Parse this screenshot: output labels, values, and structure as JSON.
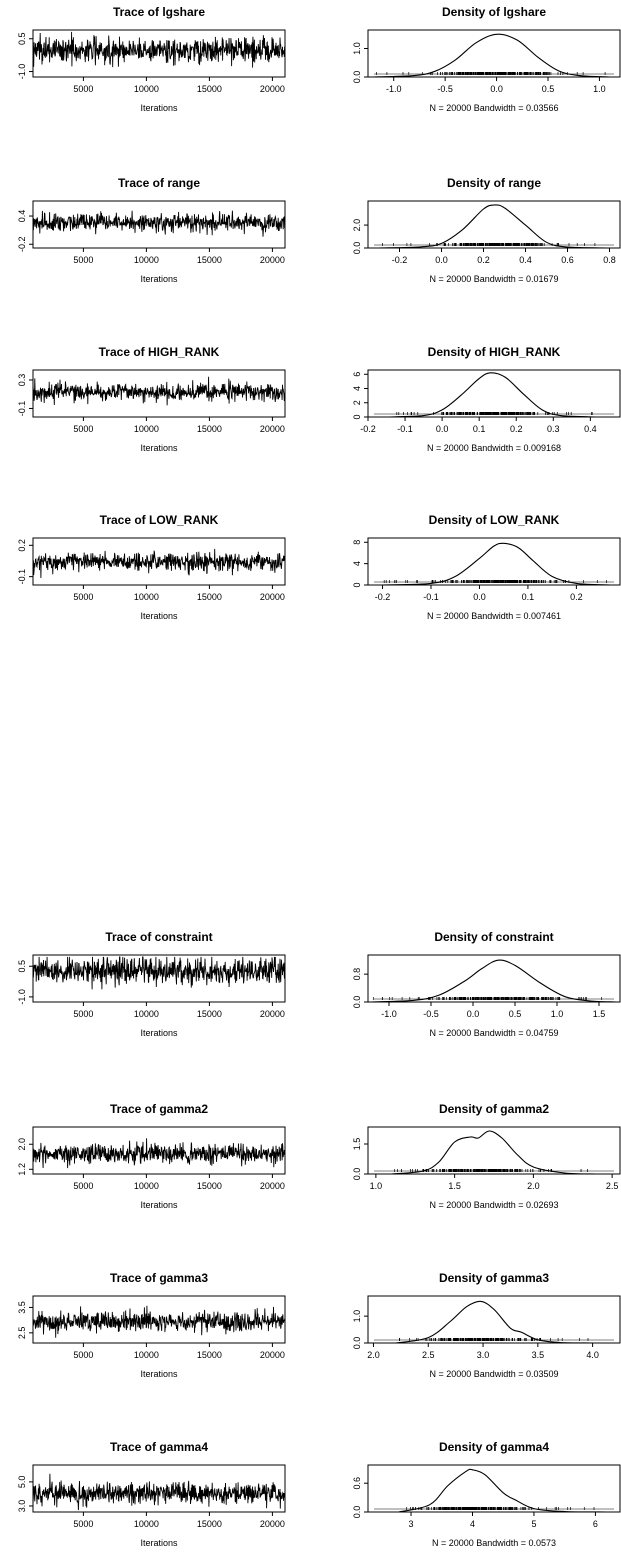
{
  "figure": {
    "background": "#ffffff",
    "line_color": "#000000",
    "rug_color": "#000000"
  },
  "chart_data": [
    {
      "type": "line",
      "title": "Trace of lgshare",
      "xlabel": "Iterations",
      "xlim": [
        1000,
        21000
      ],
      "ylim": [
        -1.25,
        0.9
      ],
      "xticks": [
        5000,
        10000,
        15000,
        20000
      ],
      "xtick_labels": [
        "5000",
        "10000",
        "15000",
        "20000"
      ],
      "yticks": [
        -1.0,
        0.5
      ],
      "ytick_labels": [
        "-1.0",
        "0.5"
      ],
      "trace": {
        "center": -0.02,
        "sd": 0.3,
        "n": 20000
      }
    },
    {
      "type": "line",
      "title": "Density of lgshare",
      "xlabel": "N = 20000   Bandwidth = 0.03566",
      "xlim": [
        -1.25,
        1.2
      ],
      "ylim": [
        0,
        1.65
      ],
      "xticks": [
        -1.0,
        -0.5,
        0.0,
        0.5,
        1.0
      ],
      "xtick_labels": [
        "-1.0",
        "-0.5",
        "0.0",
        "0.5",
        "1.0"
      ],
      "yticks": [
        0.0,
        1.0
      ],
      "ytick_labels": [
        "0.0",
        "1.0"
      ],
      "density": {
        "x": [
          -1.2,
          -0.8,
          -0.6,
          -0.4,
          -0.2,
          0.0,
          0.2,
          0.4,
          0.6,
          0.8,
          1.1
        ],
        "y": [
          0.0,
          0.05,
          0.2,
          0.6,
          1.2,
          1.5,
          1.3,
          0.7,
          0.22,
          0.05,
          0.0
        ]
      }
    },
    {
      "type": "line",
      "title": "Trace of range",
      "xlabel": "Iterations",
      "xlim": [
        1000,
        21000
      ],
      "ylim": [
        -0.28,
        0.72
      ],
      "xticks": [
        5000,
        10000,
        15000,
        20000
      ],
      "xtick_labels": [
        "5000",
        "10000",
        "15000",
        "20000"
      ],
      "yticks": [
        -0.2,
        0.4
      ],
      "ytick_labels": [
        "-0.2",
        "0.4"
      ],
      "trace": {
        "center": 0.26,
        "sd": 0.1,
        "n": 20000
      }
    },
    {
      "type": "line",
      "title": "Density of range",
      "xlabel": "N = 20000   Bandwidth = 0.01679",
      "xlim": [
        -0.35,
        0.85
      ],
      "ylim": [
        0,
        4.1
      ],
      "xticks": [
        -0.2,
        0.0,
        0.2,
        0.4,
        0.6,
        0.8
      ],
      "xtick_labels": [
        "-0.2",
        "0.0",
        "0.2",
        "0.4",
        "0.6",
        "0.8"
      ],
      "yticks": [
        0.0,
        2.0
      ],
      "ytick_labels": [
        "0.0",
        "2.0"
      ],
      "density": {
        "x": [
          -0.3,
          -0.1,
          0.0,
          0.1,
          0.2,
          0.25,
          0.3,
          0.4,
          0.5,
          0.6,
          0.8
        ],
        "y": [
          0.0,
          0.1,
          0.4,
          1.6,
          3.4,
          3.75,
          3.5,
          2.0,
          0.5,
          0.08,
          0.0
        ]
      }
    },
    {
      "type": "line",
      "title": "Trace of HIGH_RANK",
      "xlabel": "Iterations",
      "xlim": [
        1000,
        21000
      ],
      "ylim": [
        -0.22,
        0.44
      ],
      "xticks": [
        5000,
        10000,
        15000,
        20000
      ],
      "xtick_labels": [
        "5000",
        "10000",
        "15000",
        "20000"
      ],
      "yticks": [
        -0.1,
        0.3
      ],
      "ytick_labels": [
        "-0.1",
        "0.3"
      ],
      "trace": {
        "center": 0.13,
        "sd": 0.063,
        "n": 20000
      }
    },
    {
      "type": "line",
      "title": "Density of HIGH_RANK",
      "xlabel": "N = 20000   Bandwidth = 0.009168",
      "xlim": [
        -0.2,
        0.48
      ],
      "ylim": [
        0,
        6.6
      ],
      "xticks": [
        -0.2,
        -0.1,
        0.0,
        0.1,
        0.2,
        0.3,
        0.4
      ],
      "xtick_labels": [
        "-0.2",
        "-0.1",
        "0.0",
        "0.1",
        "0.2",
        "0.3",
        "0.4"
      ],
      "yticks": [
        0,
        2,
        4,
        6
      ],
      "ytick_labels": [
        "0",
        "2",
        "4",
        "6"
      ],
      "density": {
        "x": [
          -0.15,
          -0.05,
          0.0,
          0.05,
          0.1,
          0.13,
          0.17,
          0.22,
          0.27,
          0.32,
          0.42
        ],
        "y": [
          0.0,
          0.2,
          1.0,
          3.0,
          5.4,
          6.2,
          5.6,
          3.2,
          1.0,
          0.2,
          0.0
        ]
      }
    },
    {
      "type": "line",
      "title": "Trace of LOW_RANK",
      "xlabel": "Iterations",
      "xlim": [
        1000,
        21000
      ],
      "ylim": [
        -0.18,
        0.27
      ],
      "xticks": [
        5000,
        10000,
        15000,
        20000
      ],
      "xtick_labels": [
        "5000",
        "10000",
        "15000",
        "20000"
      ],
      "yticks": [
        -0.1,
        0.2
      ],
      "ytick_labels": [
        "-0.1",
        "0.2"
      ],
      "trace": {
        "center": 0.04,
        "sd": 0.045,
        "n": 20000
      }
    },
    {
      "type": "line",
      "title": "Density of LOW_RANK",
      "xlabel": "N = 20000   Bandwidth = 0.007461",
      "xlim": [
        -0.23,
        0.29
      ],
      "ylim": [
        0,
        8.8
      ],
      "xticks": [
        -0.2,
        -0.1,
        0.0,
        0.1,
        0.2
      ],
      "xtick_labels": [
        "-0.2",
        "-0.1",
        "0.0",
        "0.1",
        "0.2"
      ],
      "yticks": [
        0,
        4,
        8
      ],
      "ytick_labels": [
        "0",
        "4",
        "8"
      ],
      "density": {
        "x": [
          -0.2,
          -0.1,
          -0.05,
          0.0,
          0.03,
          0.05,
          0.08,
          0.11,
          0.15,
          0.2,
          0.27
        ],
        "y": [
          0.0,
          0.3,
          1.6,
          5.0,
          7.3,
          7.8,
          7.0,
          4.6,
          1.6,
          0.3,
          0.0
        ]
      }
    },
    {
      "type": "line",
      "title": "Trace of constraint",
      "xlabel": "Iterations",
      "xlim": [
        1000,
        21000
      ],
      "ylim": [
        -1.25,
        1.05
      ],
      "xticks": [
        5000,
        10000,
        15000,
        20000
      ],
      "xtick_labels": [
        "5000",
        "10000",
        "15000",
        "20000"
      ],
      "yticks": [
        -1.0,
        0.5
      ],
      "ytick_labels": [
        "-1.0",
        "0.5"
      ],
      "trace": {
        "center": 0.28,
        "sd": 0.33,
        "n": 20000
      }
    },
    {
      "type": "line",
      "title": "Density of constraint",
      "xlabel": "N = 20000   Bandwidth = 0.04759",
      "xlim": [
        -1.25,
        1.75
      ],
      "ylim": [
        0,
        1.35
      ],
      "xticks": [
        -1.0,
        -0.5,
        0.0,
        0.5,
        1.0,
        1.5
      ],
      "xtick_labels": [
        "-1.0",
        "-0.5",
        "0.0",
        "0.5",
        "1.0",
        "1.5"
      ],
      "yticks": [
        0.0,
        0.8
      ],
      "ytick_labels": [
        "0.0",
        "0.8"
      ],
      "density": {
        "x": [
          -1.2,
          -0.7,
          -0.4,
          -0.1,
          0.1,
          0.3,
          0.5,
          0.8,
          1.1,
          1.4,
          1.7
        ],
        "y": [
          0.0,
          0.05,
          0.2,
          0.6,
          0.95,
          1.2,
          1.05,
          0.55,
          0.15,
          0.03,
          0.0
        ]
      }
    },
    {
      "type": "line",
      "title": "Trace of gamma2",
      "xlabel": "Iterations",
      "xlim": [
        1000,
        21000
      ],
      "ylim": [
        1.05,
        2.55
      ],
      "xticks": [
        5000,
        10000,
        15000,
        20000
      ],
      "xtick_labels": [
        "5000",
        "10000",
        "15000",
        "20000"
      ],
      "yticks": [
        1.2,
        2.0
      ],
      "ytick_labels": [
        "1.2",
        "2.0"
      ],
      "trace": {
        "center": 1.7,
        "sd": 0.15,
        "n": 20000
      }
    },
    {
      "type": "line",
      "title": "Density of gamma2",
      "xlabel": "N = 20000   Bandwidth = 0.02693",
      "xlim": [
        0.95,
        2.55
      ],
      "ylim": [
        0,
        2.35
      ],
      "xticks": [
        1.0,
        1.5,
        2.0,
        2.5
      ],
      "xtick_labels": [
        "1.0",
        "1.5",
        "2.0",
        "2.5"
      ],
      "yticks": [
        0.0,
        1.5
      ],
      "ytick_labels": [
        "0.0",
        "1.5"
      ],
      "density": {
        "x": [
          1.1,
          1.3,
          1.4,
          1.5,
          1.6,
          1.65,
          1.72,
          1.8,
          1.9,
          2.0,
          2.2,
          2.4
        ],
        "y": [
          0.0,
          0.15,
          0.6,
          1.6,
          1.85,
          1.8,
          2.15,
          1.8,
          0.95,
          0.35,
          0.05,
          0.0
        ]
      }
    },
    {
      "type": "line",
      "title": "Trace of gamma3",
      "xlabel": "Iterations",
      "xlim": [
        1000,
        21000
      ],
      "ylim": [
        2.1,
        3.95
      ],
      "xticks": [
        5000,
        10000,
        15000,
        20000
      ],
      "xtick_labels": [
        "5000",
        "10000",
        "15000",
        "20000"
      ],
      "yticks": [
        2.5,
        3.5
      ],
      "ytick_labels": [
        "2.5",
        "3.5"
      ],
      "trace": {
        "center": 2.95,
        "sd": 0.2,
        "n": 20000
      }
    },
    {
      "type": "line",
      "title": "Density of gamma3",
      "xlabel": "N = 20000   Bandwidth = 0.03509",
      "xlim": [
        1.95,
        4.25
      ],
      "ylim": [
        0,
        1.75
      ],
      "xticks": [
        2.0,
        2.5,
        3.0,
        3.5,
        4.0
      ],
      "xtick_labels": [
        "2.0",
        "2.5",
        "3.0",
        "3.5",
        "4.0"
      ],
      "yticks": [
        0.0,
        1.0
      ],
      "ytick_labels": [
        "0.0",
        "1.0"
      ],
      "density": {
        "x": [
          2.2,
          2.5,
          2.7,
          2.85,
          2.98,
          3.1,
          3.25,
          3.35,
          3.5,
          3.7,
          4.0
        ],
        "y": [
          0.0,
          0.2,
          0.8,
          1.35,
          1.55,
          1.25,
          0.55,
          0.4,
          0.12,
          0.02,
          0.0
        ]
      }
    },
    {
      "type": "line",
      "title": "Trace of gamma4",
      "xlabel": "Iterations",
      "xlim": [
        1000,
        21000
      ],
      "ylim": [
        2.5,
        6.4
      ],
      "xticks": [
        5000,
        10000,
        15000,
        20000
      ],
      "xtick_labels": [
        "5000",
        "10000",
        "15000",
        "20000"
      ],
      "yticks": [
        3.0,
        5.0
      ],
      "ytick_labels": [
        "3.0",
        "5.0"
      ],
      "trace": {
        "center": 4.05,
        "sd": 0.45,
        "n": 20000
      }
    },
    {
      "type": "line",
      "title": "Density of gamma4",
      "xlabel": "N = 20000   Bandwidth = 0.0573",
      "xlim": [
        2.3,
        6.4
      ],
      "ylim": [
        0,
        0.98
      ],
      "xticks": [
        3,
        4,
        5,
        6
      ],
      "xtick_labels": [
        "3",
        "4",
        "5",
        "6"
      ],
      "yticks": [
        0.0,
        0.6
      ],
      "ytick_labels": [
        "0.0",
        "0.6"
      ],
      "density": {
        "x": [
          2.8,
          3.3,
          3.6,
          3.9,
          4.0,
          4.2,
          4.5,
          4.7,
          5.0,
          5.5,
          6.2
        ],
        "y": [
          0.0,
          0.15,
          0.55,
          0.85,
          0.88,
          0.78,
          0.4,
          0.25,
          0.07,
          0.01,
          0.0
        ]
      }
    }
  ]
}
